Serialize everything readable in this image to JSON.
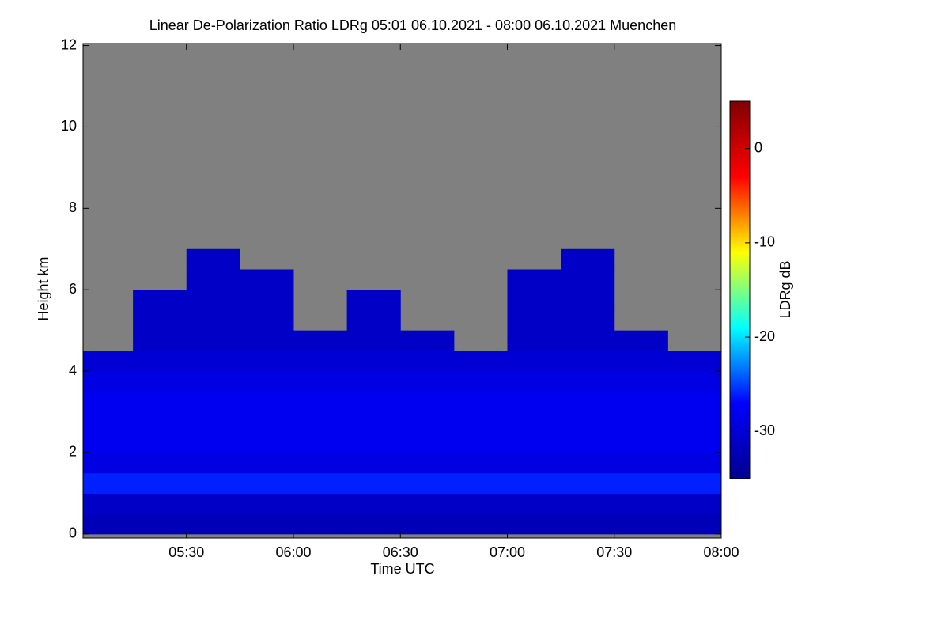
{
  "chart_data": {
    "type": "heatmap",
    "title": "Linear De-Polarization Ratio LDRg   05:01 06.10.2021 - 08:00 06.10.2021 Muenchen",
    "x_label": "Time UTC",
    "y_label": "Height km",
    "colorbar_label": "LDRg dB",
    "xlim": [
      5.0167,
      8.0
    ],
    "xticks": [
      {
        "value": 5.5,
        "label": "05:30"
      },
      {
        "value": 6.0,
        "label": "06:00"
      },
      {
        "value": 6.5,
        "label": "06:30"
      },
      {
        "value": 7.0,
        "label": "07:00"
      },
      {
        "value": 7.5,
        "label": "07:30"
      },
      {
        "value": 8.0,
        "label": "08:00"
      }
    ],
    "ylim": [
      -0.1,
      12.05
    ],
    "yticks": [
      0,
      2,
      4,
      6,
      8,
      10,
      12
    ],
    "clim": [
      -35,
      5
    ],
    "cticks": [
      -30,
      -20,
      -10,
      0
    ],
    "colormap": [
      "#00008f",
      "#0000ff",
      "#00ffff",
      "#ffff00",
      "#ff0000",
      "#800000"
    ],
    "missing_color": "#808080",
    "xbins": [
      5.0167,
      5.25,
      5.5,
      5.75,
      6.0,
      6.25,
      6.5,
      6.75,
      7.0,
      7.25,
      7.5,
      7.75,
      8.0
    ],
    "ybins": [
      0,
      0.5,
      1,
      1.5,
      2,
      2.5,
      3,
      3.5,
      4,
      4.5,
      5,
      5.5,
      6,
      6.5,
      7
    ],
    "z": [
      [
        -32,
        -32,
        -32,
        -32,
        -32,
        -32,
        -32,
        -32,
        -32,
        -32,
        -32,
        -32
      ],
      [
        -31,
        -31,
        -31,
        -31,
        -31,
        -31,
        -31,
        -31,
        -31,
        -31,
        -31,
        -31
      ],
      [
        -26,
        -26,
        -26,
        -26,
        -26,
        -26,
        -26,
        -26,
        -26,
        -26,
        -26,
        -26
      ],
      [
        -29,
        -29,
        -29,
        -29,
        -29,
        -29,
        -29,
        -29,
        -29,
        -29,
        -29,
        -29
      ],
      [
        -28,
        -28,
        -28,
        -28,
        -28,
        -28,
        -28,
        -28,
        -28,
        -28,
        -28,
        -28
      ],
      [
        -28,
        -28,
        -28,
        -28,
        -28,
        -28,
        -28,
        -28,
        -28,
        -28,
        -28,
        -28
      ],
      [
        -28,
        -28,
        -28,
        -28,
        -28,
        -28,
        -28,
        -28,
        -28,
        -28,
        -28,
        -28
      ],
      [
        -29,
        -29,
        -29,
        -29,
        -29,
        -29,
        -29,
        -29,
        -29,
        -29,
        -29,
        -29
      ],
      [
        -30,
        -30,
        -30,
        -30,
        -30,
        -30,
        -30,
        -30,
        -30,
        -30,
        -30,
        -30
      ],
      [
        null,
        -31,
        -31,
        -31,
        -31,
        -31,
        -31,
        null,
        -31,
        -31,
        -31,
        null
      ],
      [
        null,
        -31,
        -31,
        -31,
        null,
        -31,
        null,
        null,
        -31,
        -31,
        null,
        null
      ],
      [
        null,
        -31,
        -31,
        -31,
        null,
        -31,
        null,
        null,
        -31,
        -31,
        null,
        null
      ],
      [
        null,
        null,
        -31,
        -31,
        null,
        null,
        null,
        null,
        -31,
        -31,
        null,
        null
      ],
      [
        null,
        null,
        -31,
        null,
        null,
        null,
        null,
        null,
        null,
        -31,
        null,
        null
      ]
    ]
  }
}
